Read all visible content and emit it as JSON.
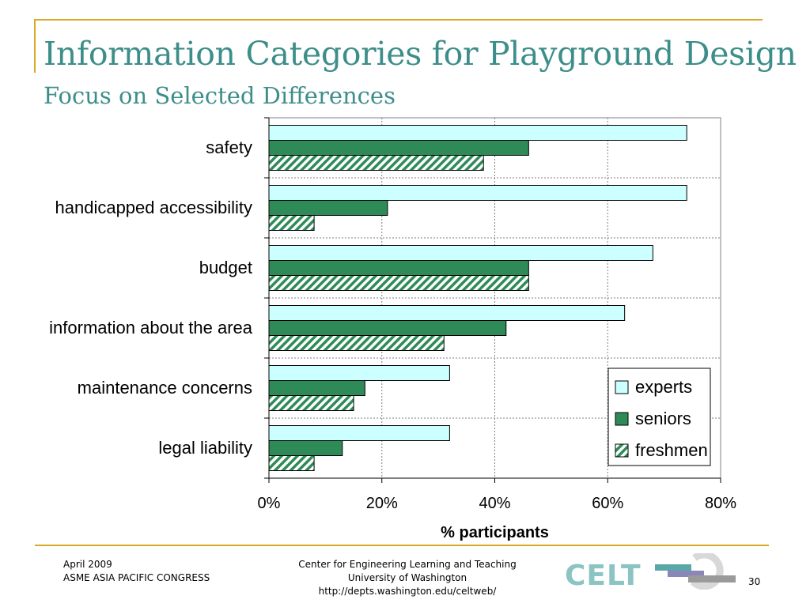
{
  "slide": {
    "title": "Information Categories for Playground Design",
    "subtitle": "Focus on Selected Differences"
  },
  "chart_data": {
    "type": "bar",
    "orientation": "horizontal",
    "categories": [
      "safety",
      "handicapped accessibility",
      "budget",
      "information about the area",
      "maintenance concerns",
      "legal liability"
    ],
    "series": [
      {
        "name": "experts",
        "values": [
          74,
          74,
          68,
          63,
          32,
          32
        ],
        "color": "#ccffff",
        "pattern": "solid"
      },
      {
        "name": "seniors",
        "values": [
          46,
          21,
          46,
          42,
          17,
          13
        ],
        "color": "#2e8b57",
        "pattern": "solid"
      },
      {
        "name": "freshmen",
        "values": [
          38,
          8,
          46,
          31,
          15,
          8
        ],
        "color": "#2e8b57",
        "pattern": "hatched"
      }
    ],
    "xlabel": "% participants",
    "xlim": [
      0,
      80
    ],
    "xticks": [
      "0%",
      "20%",
      "40%",
      "60%",
      "80%"
    ],
    "grid": true,
    "legend_position": "bottom-right"
  },
  "footer": {
    "date": "April 2009",
    "event": "ASME ASIA PACIFIC CONGRESS",
    "center_line1": "Center for Engineering Learning and Teaching",
    "center_line2": "University of Washington",
    "center_line3": "http://depts.washington.edu/celtweb/",
    "page_number": "30",
    "logo_text": "CELT"
  },
  "colors": {
    "accent": "#d9a927",
    "title": "#3d8e8a"
  }
}
